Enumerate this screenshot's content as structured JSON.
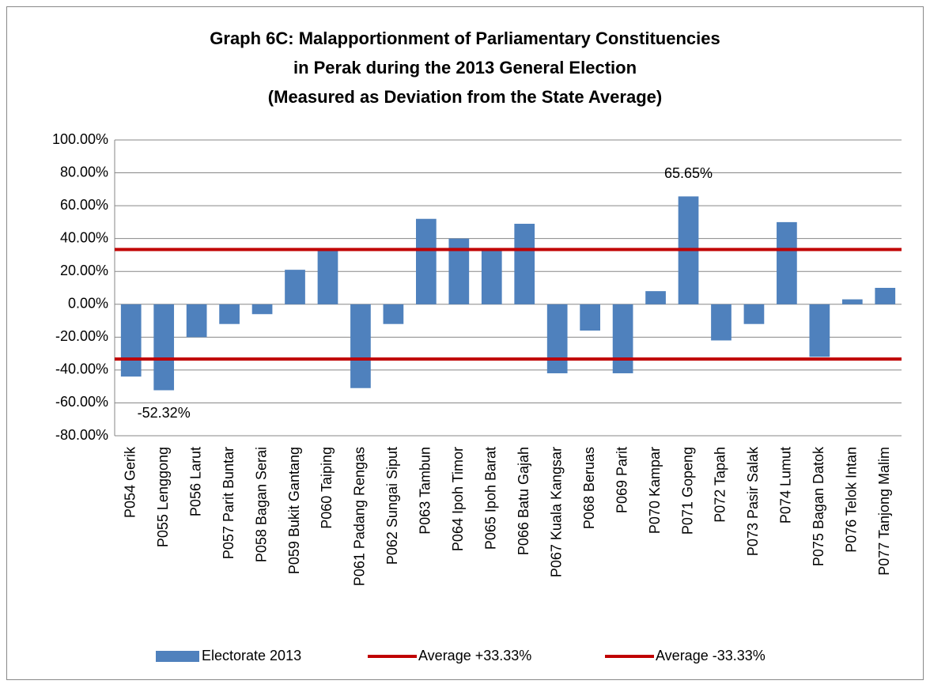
{
  "chart_data": {
    "type": "bar",
    "title": [
      "Graph 6C: Malapportionment of Parliamentary Constituencies",
      "in Perak during the 2013 General Election",
      "(Measured as Deviation from the State Average)"
    ],
    "categories": [
      "P054 Gerik",
      "P055 Lenggong",
      "P056 Larut",
      "P057 Parit Buntar",
      "P058 Bagan Serai",
      "P059 Bukit Gantang",
      "P060 Taiping",
      "P061 Padang Rengas",
      "P062 Sungai Siput",
      "P063 Tambun",
      "P064 Ipoh Timor",
      "P065 Ipoh Barat",
      "P066 Batu Gajah",
      "P067 Kuala Kangsar",
      "P068 Beruas",
      "P069 Parit",
      "P070 Kampar",
      "P071 Gopeng",
      "P072 Tapah",
      "P073 Pasir Salak",
      "P074 Lumut",
      "P075 Bagan Datok",
      "P076 Telok Intan",
      "P077 Tanjong Malim"
    ],
    "series": [
      {
        "name": "Electorate 2013",
        "type": "bar",
        "color": "#4f81bd",
        "values": [
          -44,
          -52.32,
          -20,
          -12,
          -6,
          21,
          33,
          -51,
          -12,
          52,
          40,
          33,
          49,
          -42,
          -16,
          -42,
          8,
          65.65,
          -22,
          -12,
          50,
          -32,
          3,
          10
        ],
        "value_labels": [
          null,
          "-52.32%",
          null,
          null,
          null,
          null,
          null,
          null,
          null,
          null,
          null,
          null,
          null,
          null,
          null,
          null,
          null,
          "65.65%",
          null,
          null,
          null,
          null,
          null,
          null
        ]
      },
      {
        "name": "Average +33.33%",
        "type": "line",
        "color": "#c00000",
        "values": [
          33.33,
          33.33,
          33.33,
          33.33,
          33.33,
          33.33,
          33.33,
          33.33,
          33.33,
          33.33,
          33.33,
          33.33,
          33.33,
          33.33,
          33.33,
          33.33,
          33.33,
          33.33,
          33.33,
          33.33,
          33.33,
          33.33,
          33.33,
          33.33
        ]
      },
      {
        "name": "Average -33.33%",
        "type": "line",
        "color": "#c00000",
        "values": [
          -33.33,
          -33.33,
          -33.33,
          -33.33,
          -33.33,
          -33.33,
          -33.33,
          -33.33,
          -33.33,
          -33.33,
          -33.33,
          -33.33,
          -33.33,
          -33.33,
          -33.33,
          -33.33,
          -33.33,
          -33.33,
          -33.33,
          -33.33,
          -33.33,
          -33.33,
          -33.33,
          -33.33
        ]
      }
    ],
    "ylim": [
      -80,
      100
    ],
    "yticks": [
      {
        "value": -80,
        "label": "-80.00%"
      },
      {
        "value": -60,
        "label": "-60.00%"
      },
      {
        "value": -40,
        "label": "-40.00%"
      },
      {
        "value": -20,
        "label": "-20.00%"
      },
      {
        "value": 0,
        "label": "0.00%"
      },
      {
        "value": 20,
        "label": "20.00%"
      },
      {
        "value": 40,
        "label": "40.00%"
      },
      {
        "value": 60,
        "label": "60.00%"
      },
      {
        "value": 80,
        "label": "80.00%"
      },
      {
        "value": 100,
        "label": "100.00%"
      }
    ],
    "grid": true,
    "legend": "bottom"
  }
}
